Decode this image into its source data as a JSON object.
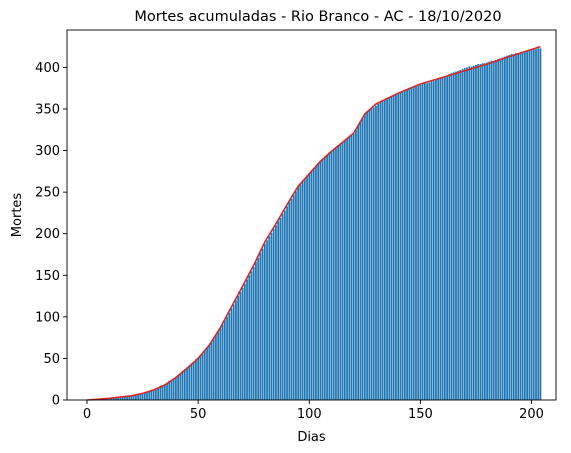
{
  "chart_data": {
    "type": "bar",
    "title": "Mortes acumuladas - Rio Branco - AC - 18/10/2020",
    "xlabel": "Dias",
    "ylabel": "Mortes",
    "xlim": [
      -9,
      211
    ],
    "ylim": [
      0,
      445
    ],
    "x_ticks": [
      0,
      50,
      100,
      150,
      200
    ],
    "y_ticks": [
      0,
      50,
      100,
      150,
      200,
      250,
      300,
      350,
      400
    ],
    "grid": false,
    "legend": "none",
    "x": [
      0,
      5,
      10,
      15,
      20,
      25,
      30,
      35,
      40,
      45,
      50,
      55,
      60,
      65,
      70,
      75,
      80,
      85,
      90,
      95,
      100,
      105,
      110,
      115,
      120,
      125,
      130,
      135,
      140,
      145,
      150,
      155,
      160,
      165,
      170,
      175,
      180,
      185,
      190,
      195,
      200,
      204
    ],
    "values": [
      0,
      1,
      2,
      3,
      5,
      8,
      13,
      19,
      28,
      39,
      51,
      66,
      86,
      110,
      135,
      160,
      188,
      210,
      233,
      256,
      273,
      288,
      300,
      310,
      320,
      345,
      354,
      363,
      369,
      375,
      379,
      383,
      388,
      394,
      399,
      403,
      406,
      410,
      415,
      418,
      421,
      423
    ],
    "series": [
      {
        "type": "bar",
        "color": "#1f77b4"
      },
      {
        "type": "line",
        "color": "#d62728",
        "x": [
          0,
          10,
          20,
          25,
          30,
          35,
          40,
          45,
          50,
          55,
          60,
          65,
          70,
          75,
          80,
          85,
          90,
          95,
          100,
          105,
          110,
          115,
          120,
          125,
          130,
          140,
          150,
          160,
          170,
          180,
          190,
          204
        ],
        "values": [
          0,
          2,
          5,
          8,
          12,
          18,
          27,
          38,
          50,
          66,
          87,
          112,
          137,
          162,
          190,
          212,
          235,
          257,
          272,
          287,
          299,
          310,
          321,
          344,
          356,
          369,
          380,
          388,
          396,
          404,
          413,
          425
        ]
      }
    ],
    "colors": {
      "bar": "#1f77b4",
      "line": "#d62728"
    }
  }
}
